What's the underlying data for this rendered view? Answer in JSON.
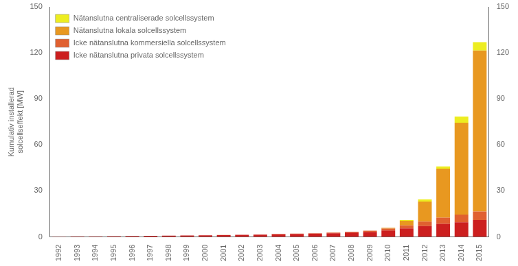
{
  "chart_data": {
    "type": "bar",
    "stacked": true,
    "categories": [
      "1992",
      "1993",
      "1994",
      "1995",
      "1996",
      "1997",
      "1998",
      "1999",
      "2000",
      "2001",
      "2002",
      "2003",
      "2004",
      "2005",
      "2006",
      "2007",
      "2008",
      "2009",
      "2010",
      "2011",
      "2012",
      "2013",
      "2014",
      "2015"
    ],
    "series": [
      {
        "name": "Icke nätanslutna privata solcellssystem",
        "color": "#cc1f1f",
        "values": [
          0.2,
          0.3,
          0.4,
          0.5,
          0.6,
          0.7,
          0.8,
          0.9,
          1.0,
          1.1,
          1.3,
          1.5,
          1.7,
          1.9,
          2.1,
          2.4,
          2.8,
          3.2,
          4.2,
          5.5,
          7.0,
          8.5,
          9.5,
          11.0
        ]
      },
      {
        "name": "Icke nätanslutna kommersiella solcellssystem",
        "color": "#e06030",
        "values": [
          0.0,
          0.0,
          0.0,
          0.0,
          0.0,
          0.0,
          0.0,
          0.0,
          0.0,
          0.1,
          0.1,
          0.1,
          0.2,
          0.2,
          0.3,
          0.4,
          0.6,
          0.8,
          1.2,
          2.0,
          3.0,
          4.0,
          5.0,
          5.5
        ]
      },
      {
        "name": "Nätanslutna lokala solcellssystem",
        "color": "#e89820",
        "values": [
          0.0,
          0.0,
          0.0,
          0.0,
          0.0,
          0.0,
          0.0,
          0.0,
          0.0,
          0.0,
          0.0,
          0.0,
          0.0,
          0.0,
          0.0,
          0.0,
          0.0,
          0.0,
          0.5,
          3.0,
          13.0,
          32.0,
          60.0,
          105.0
        ]
      },
      {
        "name": "Nätanslutna centraliserade solcellssystem",
        "color": "#eded20",
        "values": [
          0.0,
          0.0,
          0.0,
          0.0,
          0.0,
          0.0,
          0.0,
          0.0,
          0.0,
          0.0,
          0.0,
          0.0,
          0.0,
          0.0,
          0.0,
          0.0,
          0.0,
          0.0,
          0.0,
          0.5,
          1.5,
          1.5,
          4.0,
          5.5
        ]
      }
    ],
    "ylabel": "Kumulativ installerad\nsolcellseffekt [MW]",
    "ylim": [
      0,
      150
    ],
    "yticks": [
      0,
      30,
      60,
      90,
      120,
      150
    ],
    "y2lim": [
      0,
      150
    ],
    "y2ticks": [
      0,
      30,
      60,
      90,
      120,
      150
    ],
    "grid": false,
    "legend": "upper left"
  }
}
